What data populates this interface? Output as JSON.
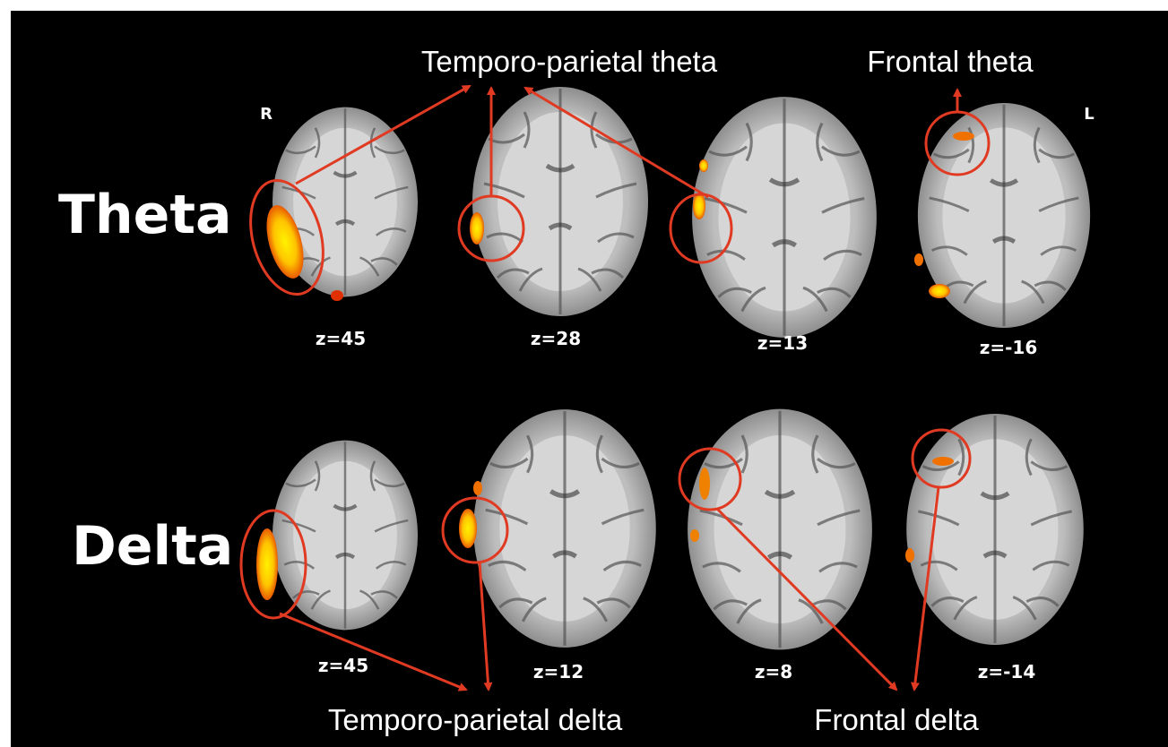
{
  "orientation": {
    "right": "R",
    "left": "L"
  },
  "rows": [
    {
      "label": "Theta",
      "slices": [
        "z=45",
        "z=28",
        "z=13",
        "z=-16"
      ]
    },
    {
      "label": "Delta",
      "slices": [
        "z=45",
        "z=12",
        "z=8",
        "z=-14"
      ]
    }
  ],
  "annotations": {
    "temporo_parietal_theta": "Temporo-parietal theta",
    "frontal_theta": "Frontal theta",
    "temporo_parietal_delta": "Temporo-parietal delta",
    "frontal_delta": "Frontal delta"
  }
}
